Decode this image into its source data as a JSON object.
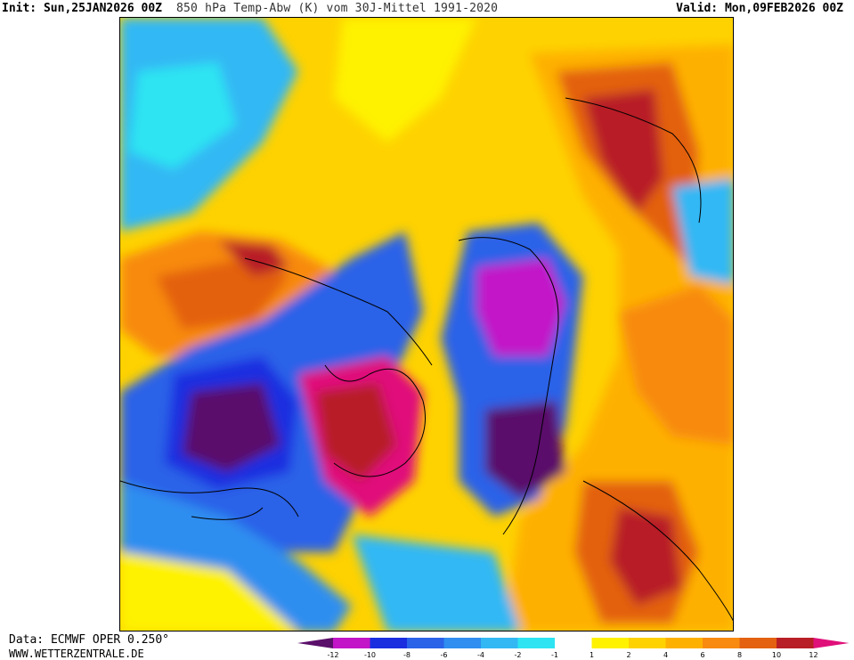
{
  "header": {
    "init": "Init: Sun,25JAN2026 00Z",
    "title": "850 hPa Temp-Abw (K) vom 30J-Mittel 1991-2020",
    "valid": "Valid: Mon,09FEB2026 00Z"
  },
  "footer": {
    "source": "Data: ECMWF OPER 0.250°",
    "website": "WWW.WETTERZENTRALE.DE"
  },
  "legend": {
    "colors": [
      "#5a0f6a",
      "#c215c8",
      "#1a2ee0",
      "#2a62e8",
      "#2f8ef0",
      "#33b8f4",
      "#2ee4f2",
      "#ffffff",
      "#fef200",
      "#fed200",
      "#feb000",
      "#f88a10",
      "#e36110",
      "#b81e25",
      "#e0107a"
    ],
    "labels": [
      "-12",
      "-10",
      "-8",
      "-6",
      "-4",
      "-2",
      "-1",
      "1",
      "2",
      "4",
      "6",
      "8",
      "10",
      "12"
    ]
  }
}
